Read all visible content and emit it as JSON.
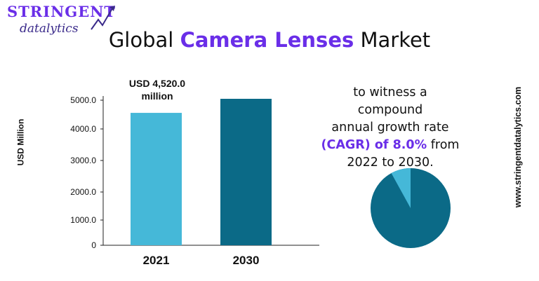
{
  "logo": {
    "line1": "STRINGENT",
    "line2": "datalytics"
  },
  "title": {
    "prefix": "Global",
    "highlight": "Camera Lenses",
    "suffix": "Market"
  },
  "annotation": {
    "line1": "USD 4,520.0",
    "line2": "million"
  },
  "cagr_text": {
    "line1": "to witness a compound",
    "line2": "annual growth rate",
    "highlight": "(CAGR) of 8.0%",
    "after_highlight": "from",
    "line4": "2022 to 2030."
  },
  "website": "www.stringentdatalytics.com",
  "colors": {
    "bar_2021": "#45b8d8",
    "bar_2030": "#0b6a87",
    "accent": "#6a2ee8",
    "pie_large": "#0b6a87",
    "pie_small": "#45b8d8"
  },
  "chart_data": {
    "type": "bar",
    "categories": [
      "2021",
      "2030"
    ],
    "values": [
      4520.0,
      5000.0
    ],
    "ylabel": "USD  Million",
    "yticks": [
      "0",
      "1000.0",
      "2000.0",
      "3000.0",
      "4000.0",
      "5000.0"
    ],
    "ylim": [
      0,
      5000
    ],
    "pie": {
      "type": "pie",
      "values": [
        92,
        8
      ]
    }
  }
}
